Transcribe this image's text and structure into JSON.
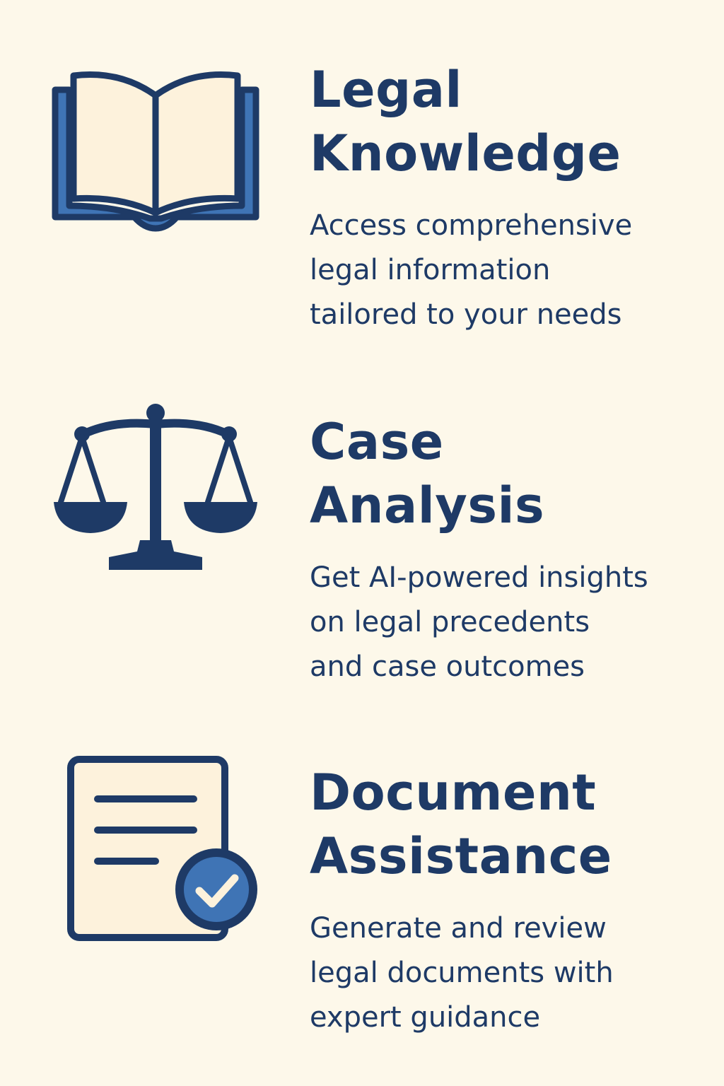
{
  "colors": {
    "background": "#fdf8ea",
    "text": "#1e3a66",
    "accent_blue": "#3f74b5",
    "paper": "#fdf2dc"
  },
  "features": [
    {
      "icon": "open-book-icon",
      "title_lines": [
        "Legal",
        "Knowledge"
      ],
      "description_lines": [
        "Access comprehensive",
        "legal information",
        "tailored to your needs"
      ]
    },
    {
      "icon": "scales-of-justice-icon",
      "title_lines": [
        "Case",
        "Analysis"
      ],
      "description_lines": [
        "Get AI-powered insights",
        "on legal precedents",
        "and case outcomes"
      ]
    },
    {
      "icon": "document-check-icon",
      "title_lines": [
        "Document",
        "Assistance"
      ],
      "description_lines": [
        "Generate and review",
        "legal documents with",
        "expert guidance"
      ]
    }
  ]
}
